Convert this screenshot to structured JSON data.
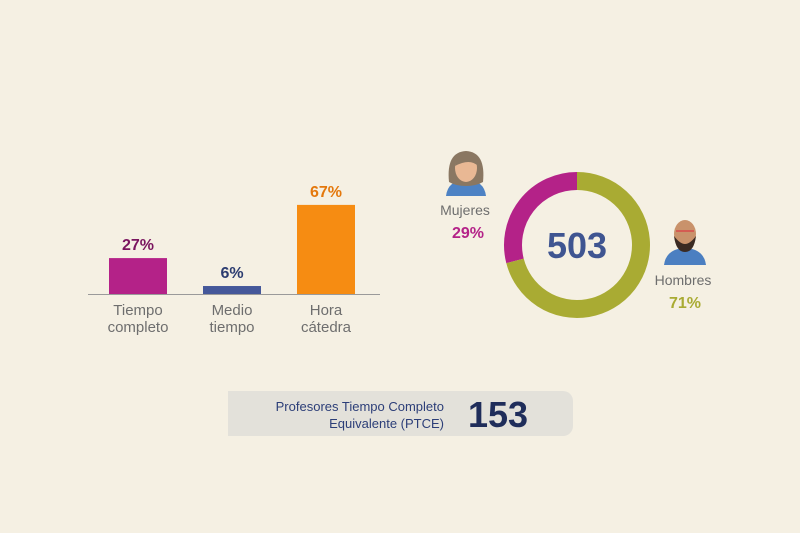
{
  "chart_data": [
    {
      "type": "bar",
      "categories": [
        "Tiempo completo",
        "Medio tiempo",
        "Hora cátedra"
      ],
      "values": [
        27,
        6,
        67
      ],
      "value_labels": [
        "27%",
        "6%",
        "67%"
      ],
      "colors": [
        "#b42288",
        "#45589a",
        "#f68c12"
      ],
      "label_colors": [
        "#7a155f",
        "#2c3c70",
        "#e4780c"
      ]
    },
    {
      "type": "donut",
      "total": 503,
      "series": [
        {
          "name": "Mujeres",
          "color": "#b42288",
          "values": [
            29
          ],
          "value_labels": [
            "29%"
          ]
        },
        {
          "name": "Hombres",
          "color": "#a9ab33",
          "values": [
            71
          ],
          "value_labels": [
            "71%"
          ]
        }
      ]
    }
  ],
  "summary": {
    "label_lines": [
      "Profesores Tiempo Completo",
      "Equivalente (PTCE)"
    ],
    "value": 153
  }
}
